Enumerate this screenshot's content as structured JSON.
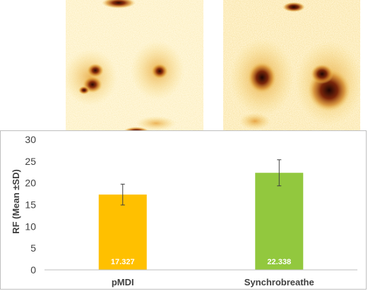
{
  "images": {
    "left_scan": {
      "subject": "lung scintigraphy image",
      "palette": [
        "#fffbea",
        "#f6d24a",
        "#c8761c",
        "#3a0c06"
      ]
    },
    "right_scan": {
      "subject": "lung scintigraphy image",
      "palette": [
        "#fffbea",
        "#f6d24a",
        "#c8761c",
        "#3a0c06"
      ]
    }
  },
  "chart_data": {
    "type": "bar",
    "categories": [
      "pMDI",
      "Synchrobreathe"
    ],
    "values": [
      17.327,
      22.338
    ],
    "value_labels": [
      "17.327",
      "22.338"
    ],
    "errors": [
      2.4,
      3.0
    ],
    "colors": [
      "#ffc000",
      "#92c83e"
    ],
    "ylabel": "RF (Mean ±SD)",
    "xlabel": "",
    "ylim": [
      0,
      30
    ],
    "yticks": [
      0,
      5,
      10,
      15,
      20,
      25,
      30
    ],
    "grid": false,
    "legend": "none"
  }
}
